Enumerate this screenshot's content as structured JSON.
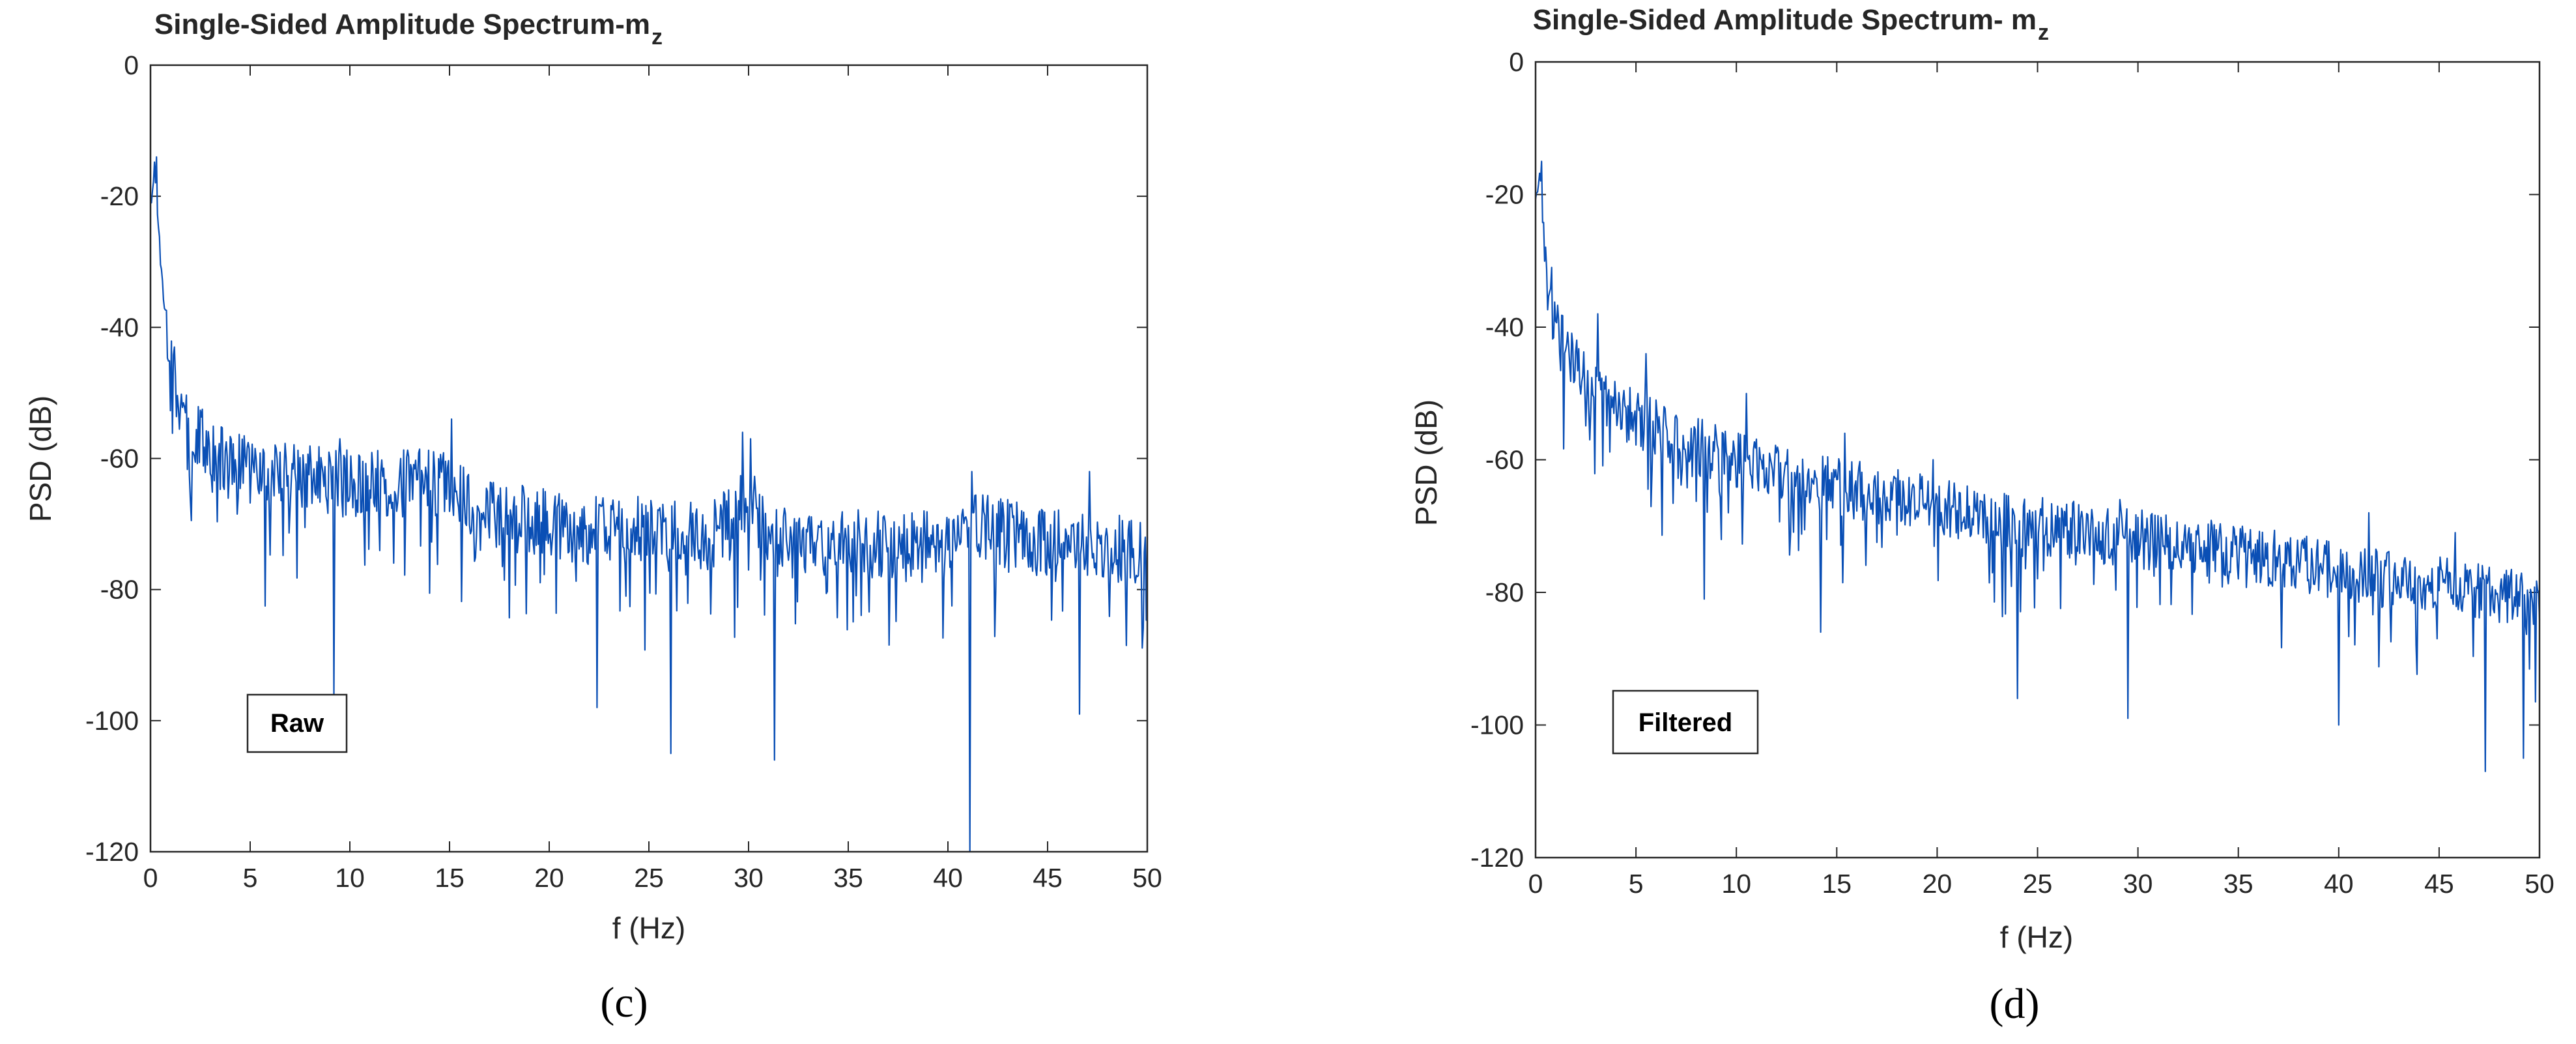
{
  "colors": {
    "series": "#0a4fb5",
    "axis": "#262626",
    "background": "#ffffff"
  },
  "chart_data": [
    {
      "type": "line",
      "title": "Single-Sided Amplitude Spectrum-m",
      "title_subscript": "z",
      "xlabel": "f (Hz)",
      "ylabel": "PSD (dB)",
      "xlim": [
        0,
        50
      ],
      "ylim": [
        -120,
        0
      ],
      "xticks": [
        0,
        5,
        10,
        15,
        20,
        25,
        30,
        35,
        40,
        45,
        50
      ],
      "yticks": [
        0,
        -20,
        -40,
        -60,
        -80,
        -100,
        -120
      ],
      "legend": "Raw",
      "caption": "(c)",
      "series": [
        {
          "name": "Raw",
          "points_per_hz": 20,
          "anchors": [
            [
              0,
              -22
            ],
            [
              0.2,
              -15
            ],
            [
              0.4,
              -25
            ],
            [
              0.6,
              -33
            ],
            [
              0.8,
              -40
            ],
            [
              1,
              -45
            ],
            [
              1.5,
              -52
            ],
            [
              2,
              -55
            ],
            [
              3,
              -59
            ],
            [
              5,
              -62
            ],
            [
              8,
              -63
            ],
            [
              10,
              -64
            ],
            [
              12,
              -64
            ],
            [
              14,
              -63.5
            ],
            [
              15,
              -64
            ],
            [
              16,
              -67
            ],
            [
              18,
              -69
            ],
            [
              20,
              -70
            ],
            [
              22,
              -71
            ],
            [
              25,
              -71
            ],
            [
              28,
              -72
            ],
            [
              29.5,
              -68
            ],
            [
              30,
              -66
            ],
            [
              31,
              -72
            ],
            [
              35,
              -73
            ],
            [
              40,
              -73
            ],
            [
              41,
              -70
            ],
            [
              45,
              -73
            ],
            [
              50,
              -74
            ]
          ],
          "peaks": [
            [
              0.3,
              -14
            ],
            [
              1.2,
              -43
            ],
            [
              9.5,
              -57
            ],
            [
              15.1,
              -54
            ],
            [
              29.7,
              -56
            ],
            [
              30.1,
              -57
            ],
            [
              41.2,
              -62
            ],
            [
              47.1,
              -62
            ]
          ],
          "dips": [
            [
              9.2,
              -96
            ],
            [
              22.4,
              -98
            ],
            [
              26.1,
              -105
            ],
            [
              31.3,
              -106
            ],
            [
              41.1,
              -120
            ],
            [
              46.6,
              -99
            ]
          ],
          "noise_db": 14,
          "seed": 17
        }
      ]
    },
    {
      "type": "line",
      "title": "Single-Sided Amplitude Spectrum- m",
      "title_subscript": "z",
      "xlabel": "f (Hz)",
      "ylabel": "PSD (dB)",
      "xlim": [
        0,
        50
      ],
      "ylim": [
        -120,
        0
      ],
      "xticks": [
        0,
        5,
        10,
        15,
        20,
        25,
        30,
        35,
        40,
        45,
        50
      ],
      "yticks": [
        0,
        -20,
        -40,
        -60,
        -80,
        -100,
        -120
      ],
      "legend": "Filtered",
      "caption": "(d)",
      "series": [
        {
          "name": "Filtered",
          "points_per_hz": 20,
          "anchors": [
            [
              0,
              -22
            ],
            [
              0.2,
              -16
            ],
            [
              0.4,
              -25
            ],
            [
              0.6,
              -33
            ],
            [
              1,
              -40
            ],
            [
              2,
              -46
            ],
            [
              3,
              -50
            ],
            [
              5,
              -54
            ],
            [
              8,
              -58
            ],
            [
              10,
              -60
            ],
            [
              15,
              -64
            ],
            [
              20,
              -67
            ],
            [
              25,
              -70
            ],
            [
              30,
              -72
            ],
            [
              35,
              -74
            ],
            [
              40,
              -77
            ],
            [
              45,
              -79
            ],
            [
              50,
              -81
            ]
          ],
          "peaks": [
            [
              0.3,
              -15
            ],
            [
              0.8,
              -31
            ],
            [
              3.1,
              -38
            ],
            [
              5.5,
              -44
            ],
            [
              10.5,
              -50
            ],
            [
              15.4,
              -56
            ],
            [
              19.8,
              -60
            ],
            [
              29.1,
              -66
            ],
            [
              41.5,
              -68
            ],
            [
              45.8,
              -71
            ]
          ],
          "dips": [
            [
              8.4,
              -81
            ],
            [
              14.2,
              -86
            ],
            [
              24.0,
              -96
            ],
            [
              29.5,
              -99
            ],
            [
              40.0,
              -100
            ],
            [
              47.3,
              -107
            ],
            [
              49.2,
              -105
            ]
          ],
          "noise_db": 12,
          "seed": 29
        }
      ]
    }
  ]
}
